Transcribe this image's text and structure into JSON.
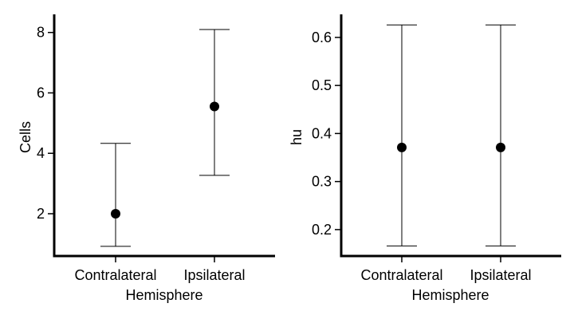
{
  "chart_data": [
    {
      "type": "scatter",
      "subtype": "point-with-errorbars",
      "categories": [
        "Contralateral",
        "Ipsilateral"
      ],
      "points": [
        {
          "category": "Contralateral",
          "y": 2.0,
          "ymin": 0.92,
          "ymax": 4.33
        },
        {
          "category": "Ipsilateral",
          "y": 5.55,
          "ymin": 3.27,
          "ymax": 8.1
        }
      ],
      "xlabel": "Hemisphere",
      "ylabel": "Cells",
      "yticks": [
        2,
        4,
        6,
        8
      ],
      "ylim": [
        0.6,
        8.6
      ],
      "grid": false,
      "colors": {
        "point": "#000000",
        "axis": "#000000"
      }
    },
    {
      "type": "scatter",
      "subtype": "point-with-errorbars",
      "categories": [
        "Contralateral",
        "Ipsilateral"
      ],
      "points": [
        {
          "category": "Contralateral",
          "y": 0.371,
          "ymin": 0.166,
          "ymax": 0.626
        },
        {
          "category": "Ipsilateral",
          "y": 0.371,
          "ymin": 0.166,
          "ymax": 0.626
        }
      ],
      "xlabel": "Hemisphere",
      "ylabel": "hu",
      "yticks": [
        0.2,
        0.3,
        0.4,
        0.5,
        0.6
      ],
      "ylim": [
        0.145,
        0.648
      ],
      "grid": false,
      "colors": {
        "point": "#000000",
        "axis": "#000000"
      }
    }
  ]
}
